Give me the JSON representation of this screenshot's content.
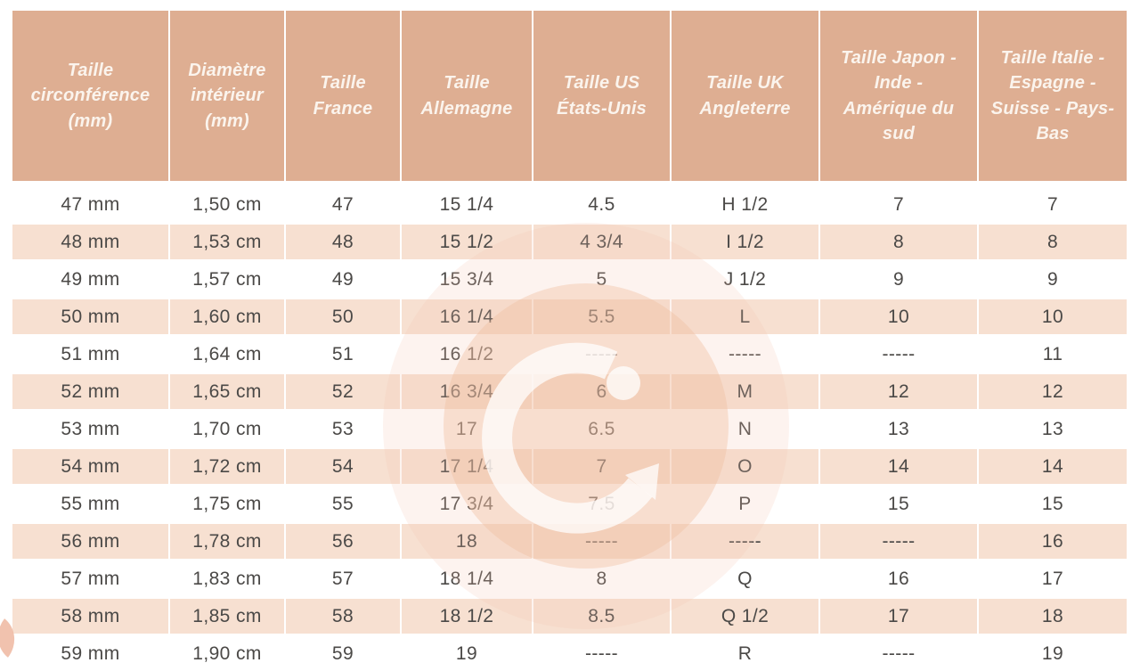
{
  "chart_data": {
    "type": "table",
    "columns": [
      "Taille circonférence (mm)",
      "Diamètre intérieur (mm)",
      "Taille France",
      "Taille Allemagne",
      "Taille US États-Unis",
      "Taille UK Angleterre",
      "Taille Japon - Inde - Amérique du sud",
      "Taille Italie - Espagne - Suisse - Pays-Bas"
    ],
    "rows": [
      [
        "47 mm",
        "1,50 cm",
        "47",
        "15 1/4",
        "4.5",
        "H 1/2",
        "7",
        "7"
      ],
      [
        "48 mm",
        "1,53 cm",
        "48",
        "15 1/2",
        "4 3/4",
        "I 1/2",
        "8",
        "8"
      ],
      [
        "49 mm",
        "1,57 cm",
        "49",
        "15 3/4",
        "5",
        "J 1/2",
        "9",
        "9"
      ],
      [
        "50 mm",
        "1,60 cm",
        "50",
        "16 1/4",
        "5.5",
        "L",
        "10",
        "10"
      ],
      [
        "51 mm",
        "1,64 cm",
        "51",
        "16 1/2",
        "-----",
        "-----",
        "-----",
        "11"
      ],
      [
        "52 mm",
        "1,65 cm",
        "52",
        "16 3/4",
        "6",
        "M",
        "12",
        "12"
      ],
      [
        "53 mm",
        "1,70 cm",
        "53",
        "17",
        "6.5",
        "N",
        "13",
        "13"
      ],
      [
        "54 mm",
        "1,72 cm",
        "54",
        "17 1/4",
        "7",
        "O",
        "14",
        "14"
      ],
      [
        "55 mm",
        "1,75 cm",
        "55",
        "17 3/4",
        "7.5",
        "P",
        "15",
        "15"
      ],
      [
        "56 mm",
        "1,78 cm",
        "56",
        "18",
        "-----",
        "-----",
        "-----",
        "16"
      ],
      [
        "57 mm",
        "1,83 cm",
        "57",
        "18 1/4",
        "8",
        "Q",
        "16",
        "17"
      ],
      [
        "58 mm",
        "1,85 cm",
        "58",
        "18 1/2",
        "8.5",
        "Q 1/2",
        "17",
        "18"
      ],
      [
        "59 mm",
        "1,90 cm",
        "59",
        "19",
        "-----",
        "R",
        "-----",
        "19"
      ]
    ],
    "layout": {
      "header_position": "top",
      "alternating_rows": true,
      "first_data_row_background": "white",
      "grid": "white separators"
    },
    "empty_value_marker": "-----"
  },
  "watermark": {
    "glyph": "G",
    "description": "large circular brand logo with stylized G, dot and arrow tip"
  },
  "colors": {
    "header_background": "#deae92",
    "header_text": "#fbf4ed",
    "alternate_row_background": "#f7e0d1",
    "body_text": "#4b4947",
    "watermark_tint": "#f3c3a8",
    "page_background": "#ffffff"
  }
}
